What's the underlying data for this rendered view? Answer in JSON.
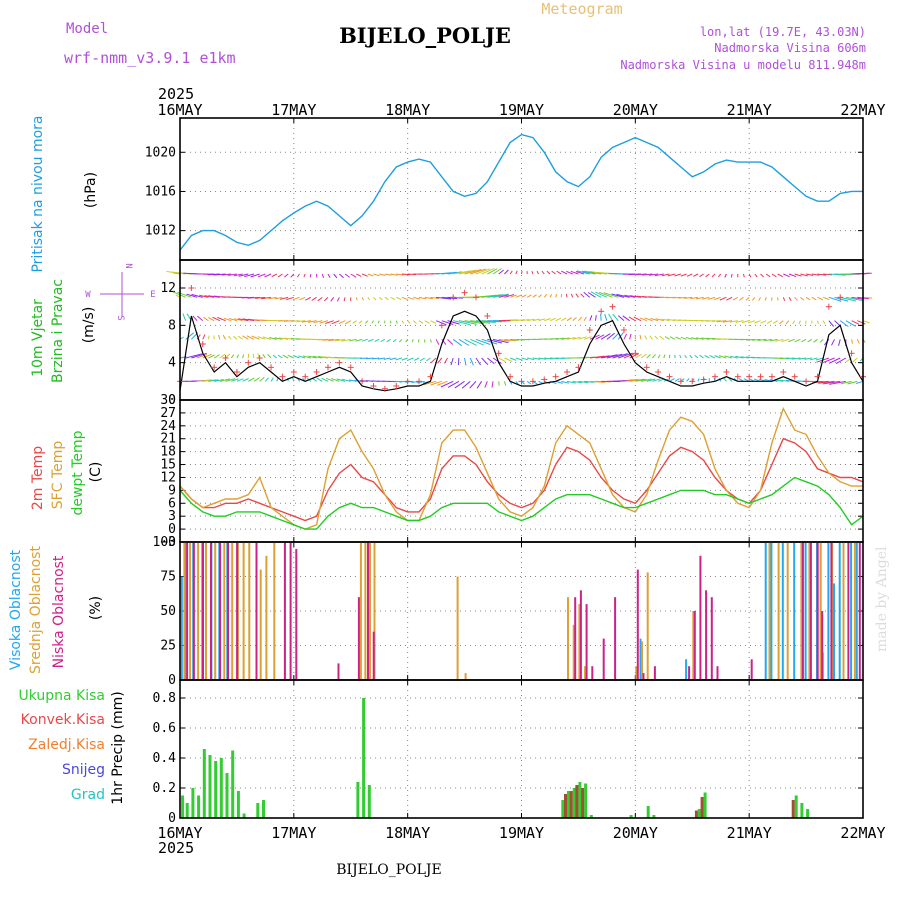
{
  "header": {
    "model_label": "Model",
    "model_name": "wrf-nmm_v3.9.1 e1km",
    "station": "BIJELO_POLJE",
    "product": "Meteogram",
    "lonlat": "lon,lat (19.7E, 43.03N)",
    "altitude": "Nadmorska Visina 606m",
    "model_altitude": "Nadmorska Visina u modelu 811.948m",
    "year": "2025",
    "footer_station": "BIJELO_POLJE",
    "credit": "made by Angel"
  },
  "colors": {
    "pressure": "#1e9ee0",
    "wind_title": "#22bb22",
    "temp2m": "#e84848",
    "sfc": "#dda033",
    "dewpt": "#22cc22",
    "cloud_high": "#22a8ee",
    "cloud_mid": "#dda033",
    "cloud_low": "#cc2288",
    "precip_total": "#33cc33",
    "precip_conv": "#e84848",
    "precip_frz": "#f08030",
    "snow": "#4848dd",
    "hail": "#22c4c4",
    "model": "#b050d8",
    "product": "#e8c078"
  },
  "chart_data": [
    {
      "type": "line",
      "id": "pressure",
      "title_left": "Pritisak na nivou mora",
      "ylabel": "(hPa)",
      "ylim": [
        1009,
        1023.5
      ],
      "yticks": [
        "1012",
        "1016",
        "1020"
      ],
      "ytick_values": [
        1012,
        1016,
        1020
      ],
      "x_ticks": [
        "16MAY",
        "17MAY",
        "18MAY",
        "19MAY",
        "20MAY",
        "21MAY",
        "22MAY"
      ],
      "x": [
        0,
        0.1,
        0.2,
        0.3,
        0.4,
        0.5,
        0.6,
        0.7,
        0.8,
        0.9,
        1.0,
        1.1,
        1.2,
        1.3,
        1.4,
        1.5,
        1.6,
        1.7,
        1.8,
        1.9,
        2.0,
        2.1,
        2.2,
        2.3,
        2.4,
        2.5,
        2.6,
        2.7,
        2.8,
        2.9,
        3.0,
        3.1,
        3.2,
        3.3,
        3.4,
        3.5,
        3.6,
        3.7,
        3.8,
        3.9,
        4.0,
        4.1,
        4.2,
        4.3,
        4.4,
        4.5,
        4.6,
        4.7,
        4.8,
        4.9,
        5.0,
        5.1,
        5.2,
        5.3,
        5.4,
        5.5,
        5.6,
        5.7,
        5.8,
        5.9,
        6.0
      ],
      "series": [
        {
          "values": [
            1010.0,
            1011.5,
            1012.0,
            1012.0,
            1011.5,
            1010.8,
            1010.5,
            1011.0,
            1012.0,
            1013.0,
            1013.8,
            1014.5,
            1015.0,
            1014.5,
            1013.5,
            1012.5,
            1013.5,
            1015.0,
            1017.0,
            1018.5,
            1019.0,
            1019.3,
            1019.0,
            1017.5,
            1016.0,
            1015.5,
            1015.8,
            1017.0,
            1019.0,
            1021.0,
            1021.8,
            1021.5,
            1020.0,
            1018.0,
            1017.0,
            1016.5,
            1017.5,
            1019.5,
            1020.5,
            1021.0,
            1021.5,
            1021.0,
            1020.5,
            1019.5,
            1018.5,
            1017.5,
            1018.0,
            1018.8,
            1019.2,
            1019.0,
            1019.0,
            1019.0,
            1018.5,
            1017.5,
            1016.5,
            1015.5,
            1015.0,
            1015.0,
            1015.8,
            1016.0,
            1016.0
          ]
        }
      ]
    },
    {
      "type": "scatter",
      "id": "wind",
      "title_left1": "10m Vjetar",
      "title_left2": "Brzina i Pravac",
      "ylabel": "(m/s)",
      "compass": {
        "n": "N",
        "e": "E",
        "w": "W",
        "s": "S"
      },
      "ylim": [
        0,
        15
      ],
      "yticks": [
        "0",
        "4",
        "8",
        "12"
      ],
      "ytick_values": [
        0,
        4,
        8,
        12
      ],
      "speed_x": [
        0,
        0.1,
        0.2,
        0.3,
        0.4,
        0.5,
        0.6,
        0.7,
        0.8,
        0.9,
        1.0,
        1.1,
        1.2,
        1.3,
        1.4,
        1.5,
        1.6,
        1.7,
        1.8,
        1.9,
        2.0,
        2.1,
        2.2,
        2.3,
        2.4,
        2.5,
        2.6,
        2.7,
        2.8,
        2.9,
        3.0,
        3.1,
        3.2,
        3.3,
        3.4,
        3.5,
        3.6,
        3.7,
        3.8,
        3.9,
        4.0,
        4.1,
        4.2,
        4.3,
        4.4,
        4.5,
        4.6,
        4.7,
        4.8,
        4.9,
        5.0,
        5.1,
        5.2,
        5.3,
        5.4,
        5.5,
        5.6,
        5.7,
        5.8,
        5.9,
        6.0
      ],
      "speed": [
        1.0,
        9.0,
        5.0,
        3.0,
        4.0,
        2.5,
        3.5,
        4.0,
        3.0,
        2.0,
        2.5,
        2.0,
        2.5,
        3.0,
        3.5,
        3.0,
        1.5,
        1.2,
        1.0,
        1.2,
        1.5,
        1.5,
        2.0,
        6.0,
        9.0,
        9.5,
        9.0,
        7.5,
        4.0,
        2.0,
        1.5,
        1.5,
        1.8,
        2.0,
        2.5,
        3.0,
        6.0,
        8.0,
        8.5,
        6.0,
        4.0,
        3.0,
        2.5,
        2.0,
        1.5,
        1.5,
        1.8,
        2.0,
        2.5,
        2.0,
        2.0,
        2.0,
        2.0,
        2.5,
        2.0,
        1.5,
        2.0,
        7.0,
        8.0,
        4.0,
        2.0
      ],
      "gust": [
        2.0,
        12.0,
        6.0,
        3.5,
        4.5,
        3.0,
        4.0,
        4.5,
        3.5,
        2.5,
        3.0,
        2.5,
        3.0,
        3.5,
        4.0,
        3.5,
        2.0,
        1.5,
        1.2,
        1.5,
        2.0,
        2.0,
        2.5,
        8.0,
        11.0,
        11.5,
        11.0,
        9.0,
        5.0,
        2.5,
        2.0,
        2.0,
        2.2,
        2.5,
        3.0,
        3.5,
        7.5,
        9.5,
        10.0,
        7.5,
        5.0,
        3.5,
        3.0,
        2.5,
        2.0,
        2.0,
        2.2,
        2.5,
        3.0,
        2.5,
        2.5,
        2.5,
        2.5,
        3.0,
        2.5,
        2.0,
        2.5,
        10.0,
        11.0,
        5.0,
        2.5
      ]
    },
    {
      "type": "line",
      "id": "temp",
      "title_2m": "2m Temp",
      "title_sfc": "SFC Temp",
      "title_dew": "dewpt Temp",
      "ylabel": "(C)",
      "ylim": [
        -3,
        30
      ],
      "yticks": [
        "−3",
        "0",
        "3",
        "6",
        "9",
        "12",
        "15",
        "18",
        "21",
        "24",
        "27",
        "30"
      ],
      "ytick_values": [
        -3,
        0,
        3,
        6,
        9,
        12,
        15,
        18,
        21,
        24,
        27,
        30
      ],
      "x": [
        0,
        0.1,
        0.2,
        0.3,
        0.4,
        0.5,
        0.6,
        0.7,
        0.8,
        0.9,
        1.0,
        1.1,
        1.2,
        1.3,
        1.4,
        1.5,
        1.6,
        1.7,
        1.8,
        1.9,
        2.0,
        2.1,
        2.2,
        2.3,
        2.4,
        2.5,
        2.6,
        2.7,
        2.8,
        2.9,
        3.0,
        3.1,
        3.2,
        3.3,
        3.4,
        3.5,
        3.6,
        3.7,
        3.8,
        3.9,
        4.0,
        4.1,
        4.2,
        4.3,
        4.4,
        4.5,
        4.6,
        4.7,
        4.8,
        4.9,
        5.0,
        5.1,
        5.2,
        5.3,
        5.4,
        5.5,
        5.6,
        5.7,
        5.8,
        5.9,
        6.0
      ],
      "series": [
        {
          "key": "temp2m",
          "values": [
            10,
            7,
            5,
            5,
            6,
            6,
            7,
            6,
            5,
            4,
            3,
            2,
            3,
            9,
            13,
            15,
            12,
            11,
            8,
            5,
            4,
            4,
            7,
            14,
            17,
            17,
            15,
            11,
            8,
            6,
            5,
            6,
            9,
            15,
            19,
            18,
            16,
            12,
            9,
            7,
            6,
            9,
            13,
            17,
            19,
            18,
            16,
            12,
            9,
            7,
            6,
            9,
            15,
            21,
            20,
            18,
            14,
            13,
            12,
            12,
            11
          ]
        },
        {
          "key": "sfc",
          "values": [
            10,
            7,
            5,
            6,
            7,
            7,
            8,
            12,
            5,
            3,
            1,
            0,
            1,
            14,
            21,
            23,
            18,
            14,
            8,
            4,
            2,
            2,
            8,
            20,
            23,
            23,
            19,
            13,
            7,
            4,
            3,
            5,
            10,
            20,
            24,
            22,
            20,
            14,
            8,
            5,
            4,
            8,
            16,
            23,
            26,
            25,
            22,
            14,
            9,
            6,
            5,
            9,
            20,
            28,
            23,
            22,
            17,
            13,
            11,
            10,
            10
          ]
        },
        {
          "key": "dewpt",
          "values": [
            9,
            6,
            4,
            3,
            3,
            4,
            4,
            4,
            3,
            2,
            1,
            0,
            0,
            3,
            5,
            6,
            5,
            5,
            4,
            3,
            2,
            2,
            3,
            5,
            6,
            6,
            6,
            6,
            4,
            3,
            2,
            3,
            5,
            7,
            8,
            8,
            8,
            7,
            6,
            5,
            5,
            6,
            7,
            8,
            9,
            9,
            9,
            8,
            8,
            7,
            6,
            7,
            8,
            10,
            12,
            11,
            10,
            8,
            5,
            1,
            3
          ]
        }
      ]
    },
    {
      "type": "bar",
      "id": "cloud",
      "title_high": "Visoka Oblacnost",
      "title_mid": "Srednja Oblacnost",
      "title_low": "Niska Oblacnost",
      "ylabel": "(%)",
      "ylim": [
        0,
        100
      ],
      "yticks": [
        "0",
        "25",
        "50",
        "75",
        "100"
      ],
      "ytick_values": [
        0,
        25,
        50,
        75,
        100
      ],
      "high": [
        [
          0.02,
          75
        ],
        [
          0.05,
          100
        ],
        [
          0.12,
          100
        ],
        [
          0.2,
          100
        ],
        [
          0.28,
          100
        ],
        [
          0.35,
          100
        ],
        [
          0.42,
          100
        ],
        [
          4.05,
          30
        ],
        [
          4.45,
          15
        ],
        [
          5.15,
          100
        ],
        [
          5.2,
          100
        ],
        [
          5.3,
          100
        ],
        [
          5.4,
          100
        ],
        [
          5.5,
          100
        ],
        [
          5.6,
          100
        ],
        [
          5.65,
          20
        ],
        [
          5.7,
          100
        ],
        [
          5.75,
          70
        ],
        [
          5.8,
          100
        ],
        [
          5.9,
          100
        ],
        [
          5.95,
          100
        ]
      ],
      "mid": [
        [
          0.03,
          100
        ],
        [
          0.08,
          100
        ],
        [
          0.15,
          100
        ],
        [
          0.22,
          100
        ],
        [
          0.3,
          100
        ],
        [
          0.38,
          100
        ],
        [
          0.45,
          100
        ],
        [
          0.5,
          100
        ],
        [
          0.55,
          100
        ],
        [
          0.6,
          100
        ],
        [
          0.7,
          80
        ],
        [
          0.75,
          90
        ],
        [
          0.82,
          100
        ],
        [
          1.58,
          100
        ],
        [
          1.62,
          100
        ],
        [
          1.66,
          100
        ],
        [
          1.7,
          100
        ],
        [
          2.43,
          75
        ],
        [
          2.5,
          5
        ],
        [
          3.4,
          60
        ],
        [
          3.45,
          40
        ],
        [
          3.5,
          55
        ],
        [
          3.55,
          10
        ],
        [
          4.0,
          10
        ],
        [
          4.05,
          28
        ],
        [
          4.1,
          78
        ],
        [
          4.5,
          50
        ],
        [
          5.17,
          100
        ],
        [
          5.25,
          100
        ],
        [
          5.33,
          100
        ],
        [
          5.45,
          100
        ],
        [
          5.52,
          100
        ],
        [
          5.62,
          100
        ],
        [
          5.72,
          100
        ],
        [
          5.82,
          100
        ],
        [
          5.92,
          100
        ]
      ],
      "low": [
        [
          0.04,
          100
        ],
        [
          0.1,
          100
        ],
        [
          0.18,
          100
        ],
        [
          0.25,
          100
        ],
        [
          0.33,
          100
        ],
        [
          0.4,
          100
        ],
        [
          0.48,
          100
        ],
        [
          0.65,
          100
        ],
        [
          0.9,
          100
        ],
        [
          0.95,
          100
        ],
        [
          1.0,
          95
        ],
        [
          1.37,
          12
        ],
        [
          1.55,
          60
        ],
        [
          1.63,
          100
        ],
        [
          1.68,
          35
        ],
        [
          3.45,
          60
        ],
        [
          3.5,
          65
        ],
        [
          3.55,
          55
        ],
        [
          3.6,
          10
        ],
        [
          3.7,
          30
        ],
        [
          3.8,
          60
        ],
        [
          4.0,
          80
        ],
        [
          4.05,
          5
        ],
        [
          4.15,
          10
        ],
        [
          4.45,
          10
        ],
        [
          4.5,
          50
        ],
        [
          4.55,
          90
        ],
        [
          4.6,
          65
        ],
        [
          4.65,
          60
        ],
        [
          4.7,
          10
        ],
        [
          5.0,
          15
        ],
        [
          5.45,
          100
        ],
        [
          5.52,
          100
        ],
        [
          5.58,
          100
        ],
        [
          5.62,
          50
        ],
        [
          5.7,
          100
        ],
        [
          5.85,
          100
        ],
        [
          5.95,
          100
        ]
      ]
    },
    {
      "type": "bar",
      "id": "precip",
      "legend": [
        "Ukupna Kisa",
        "Konvek.Kisa",
        "Zaledj.Kisa",
        "Snijeg",
        "Grad"
      ],
      "ylabel": "1hr Precip (mm)",
      "ylim": [
        0,
        0.92
      ],
      "yticks": [
        "0",
        "0.2",
        "0.4",
        "0.6",
        "0.8"
      ],
      "ytick_values": [
        0,
        0.2,
        0.4,
        0.6,
        0.8
      ],
      "x_ticks": [
        "16MAY",
        "17MAY",
        "18MAY",
        "19MAY",
        "20MAY",
        "21MAY",
        "22MAY"
      ],
      "total": [
        [
          0.01,
          0.15
        ],
        [
          0.05,
          0.1
        ],
        [
          0.1,
          0.2
        ],
        [
          0.15,
          0.15
        ],
        [
          0.2,
          0.46
        ],
        [
          0.25,
          0.42
        ],
        [
          0.3,
          0.38
        ],
        [
          0.35,
          0.4
        ],
        [
          0.4,
          0.3
        ],
        [
          0.45,
          0.45
        ],
        [
          0.5,
          0.18
        ],
        [
          0.55,
          0.03
        ],
        [
          0.67,
          0.1
        ],
        [
          0.72,
          0.12
        ],
        [
          1.55,
          0.24
        ],
        [
          1.6,
          0.8
        ],
        [
          1.65,
          0.22
        ],
        [
          3.35,
          0.12
        ],
        [
          3.4,
          0.18
        ],
        [
          3.45,
          0.2
        ],
        [
          3.5,
          0.24
        ],
        [
          3.55,
          0.23
        ],
        [
          3.6,
          0.02
        ],
        [
          3.95,
          0.02
        ],
        [
          4.1,
          0.08
        ],
        [
          4.15,
          0.02
        ],
        [
          4.55,
          0.06
        ],
        [
          4.6,
          0.17
        ],
        [
          5.4,
          0.15
        ],
        [
          5.45,
          0.1
        ],
        [
          5.5,
          0.06
        ]
      ],
      "conv": [
        [
          3.4,
          0.16
        ],
        [
          3.45,
          0.18
        ],
        [
          3.5,
          0.22
        ],
        [
          3.55,
          0.2
        ],
        [
          4.55,
          0.05
        ],
        [
          4.6,
          0.14
        ],
        [
          5.4,
          0.12
        ]
      ]
    }
  ]
}
